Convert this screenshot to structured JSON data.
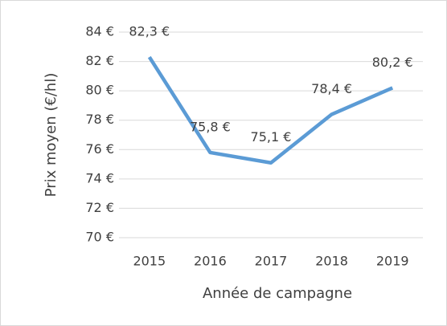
{
  "chart_data": {
    "type": "line",
    "x_label": "Année de campagne",
    "y_label": "Prix moyen (€/hl)",
    "categories": [
      "2015",
      "2016",
      "2017",
      "2018",
      "2019"
    ],
    "series": [
      {
        "name": "Prix moyen",
        "color": "#5b9bd5",
        "values": [
          82.3,
          75.8,
          75.1,
          78.4,
          80.2
        ],
        "value_labels": [
          "82,3 €",
          "75,8 €",
          "75,1 €",
          "78,4 €",
          "80,2 €"
        ]
      }
    ],
    "ylim": [
      70,
      84
    ],
    "yticks": [
      {
        "value": 70,
        "label": "70 €"
      },
      {
        "value": 72,
        "label": "72 €"
      },
      {
        "value": 74,
        "label": "74 €"
      },
      {
        "value": 76,
        "label": "76 €"
      },
      {
        "value": 78,
        "label": "78 €"
      },
      {
        "value": 80,
        "label": "80 €"
      },
      {
        "value": 82,
        "label": "82 €"
      },
      {
        "value": 84,
        "label": "84 €"
      }
    ],
    "grid": true
  }
}
